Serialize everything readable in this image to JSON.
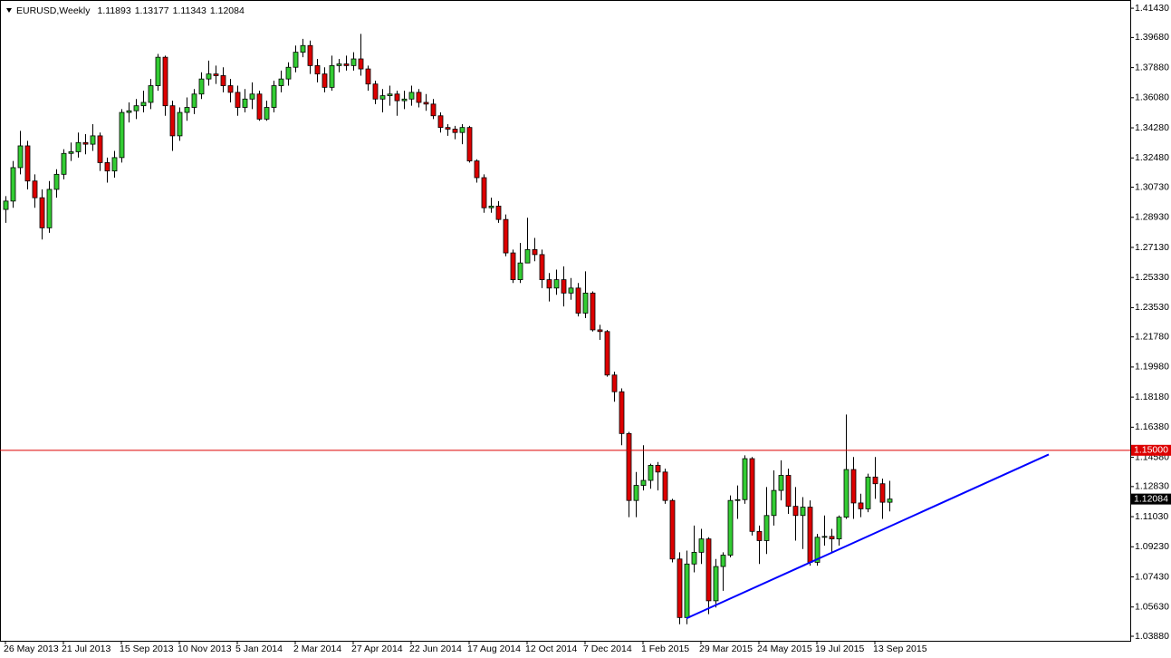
{
  "chart_data": {
    "type": "candlestick",
    "title": "EURUSD,Weekly",
    "categories": [
      "26 May 2013",
      null,
      null,
      null,
      null,
      null,
      null,
      null,
      "21 Jul 2013",
      null,
      null,
      null,
      null,
      null,
      null,
      null,
      "15 Sep 2013",
      null,
      null,
      null,
      null,
      null,
      null,
      null,
      "10 Nov 2013",
      null,
      null,
      null,
      null,
      null,
      null,
      null,
      "5 Jan 2014",
      null,
      null,
      null,
      null,
      null,
      null,
      null,
      "2 Mar 2014",
      null,
      null,
      null,
      null,
      null,
      null,
      null,
      "27 Apr 2014",
      null,
      null,
      null,
      null,
      null,
      null,
      null,
      "22 Jun 2014",
      null,
      null,
      null,
      null,
      null,
      null,
      null,
      "17 Aug 2014",
      null,
      null,
      null,
      null,
      null,
      null,
      null,
      "12 Oct 2014",
      null,
      null,
      null,
      null,
      null,
      null,
      null,
      "7 Dec 2014",
      null,
      null,
      null,
      null,
      null,
      null,
      null,
      "1 Feb 2015",
      null,
      null,
      null,
      null,
      null,
      null,
      null,
      "29 Mar 2015",
      null,
      null,
      null,
      null,
      null,
      null,
      null,
      "24 May 2015",
      null,
      null,
      null,
      null,
      null,
      null,
      null,
      "19 Jul 2015",
      null,
      null,
      null,
      null,
      null,
      null,
      null,
      "13 Sep 2015",
      null,
      null
    ],
    "open": [
      1.294,
      1.299,
      1.319,
      1.332,
      1.311,
      1.301,
      1.283,
      1.306,
      1.315,
      1.3275,
      1.3285,
      1.334,
      1.333,
      1.338,
      1.322,
      1.317,
      1.325,
      1.352,
      1.353,
      1.356,
      1.358,
      1.368,
      1.385,
      1.356,
      1.338,
      1.352,
      1.355,
      1.363,
      1.372,
      1.375,
      1.374,
      1.368,
      1.364,
      1.355,
      1.36,
      1.363,
      1.348,
      1.355,
      1.368,
      1.372,
      1.379,
      1.388,
      1.392,
      1.38,
      1.375,
      1.367,
      1.38,
      1.381,
      1.38,
      1.384,
      1.378,
      1.369,
      1.36,
      1.362,
      1.363,
      1.359,
      1.36,
      1.364,
      1.358,
      1.357,
      1.35,
      1.343,
      1.342,
      1.34,
      1.343,
      1.323,
      1.313,
      1.295,
      1.296,
      1.288,
      1.268,
      1.252,
      1.262,
      1.27,
      1.267,
      1.252,
      1.247,
      1.252,
      1.244,
      1.247,
      1.232,
      1.244,
      1.222,
      1.221,
      1.195,
      1.185,
      1.16,
      1.12,
      1.129,
      1.132,
      1.141,
      1.137,
      1.12,
      1.085,
      1.05,
      1.082,
      1.089,
      1.097,
      1.06,
      1.0805,
      1.0873,
      1.12,
      1.1205,
      1.145,
      1.1015,
      1.096,
      1.111,
      1.126,
      1.135,
      1.1165,
      1.111,
      1.116,
      1.083,
      1.098,
      1.0985,
      1.097,
      1.11,
      1.1385,
      1.1185,
      1.115,
      1.134,
      1.13,
      1.11893
    ],
    "high": [
      1.302,
      1.323,
      1.341,
      1.335,
      1.315,
      1.306,
      1.311,
      1.318,
      1.33,
      1.334,
      1.34,
      1.339,
      1.345,
      1.34,
      1.325,
      1.329,
      1.354,
      1.358,
      1.36,
      1.365,
      1.372,
      1.387,
      1.386,
      1.359,
      1.355,
      1.361,
      1.366,
      1.376,
      1.383,
      1.38,
      1.379,
      1.372,
      1.368,
      1.366,
      1.37,
      1.365,
      1.359,
      1.371,
      1.377,
      1.382,
      1.392,
      1.396,
      1.395,
      1.384,
      1.379,
      1.386,
      1.384,
      1.386,
      1.388,
      1.399,
      1.38,
      1.371,
      1.366,
      1.368,
      1.365,
      1.365,
      1.368,
      1.366,
      1.363,
      1.36,
      1.352,
      1.345,
      1.344,
      1.345,
      1.344,
      1.324,
      1.315,
      1.301,
      1.299,
      1.291,
      1.27,
      1.274,
      1.289,
      1.277,
      1.27,
      1.256,
      1.258,
      1.26,
      1.253,
      1.25,
      1.257,
      1.245,
      1.225,
      1.222,
      1.197,
      1.187,
      1.161,
      1.137,
      1.153,
      1.142,
      1.143,
      1.139,
      1.121,
      1.089,
      1.09,
      1.105,
      1.103,
      1.098,
      1.085,
      1.089,
      1.123,
      1.129,
      1.147,
      1.146,
      1.105,
      1.128,
      1.138,
      1.144,
      1.139,
      1.128,
      1.122,
      1.12,
      1.1,
      1.111,
      1.103,
      1.111,
      1.1714,
      1.146,
      1.124,
      1.136,
      1.146,
      1.133,
      1.13177
    ],
    "low": [
      1.286,
      1.295,
      1.315,
      1.306,
      1.295,
      1.276,
      1.28,
      1.301,
      1.312,
      1.323,
      1.325,
      1.327,
      1.329,
      1.317,
      1.31,
      1.313,
      1.322,
      1.346,
      1.348,
      1.352,
      1.354,
      1.365,
      1.35,
      1.329,
      1.335,
      1.347,
      1.351,
      1.36,
      1.368,
      1.369,
      1.364,
      1.358,
      1.35,
      1.352,
      1.354,
      1.347,
      1.347,
      1.352,
      1.364,
      1.368,
      1.376,
      1.385,
      1.375,
      1.37,
      1.364,
      1.365,
      1.376,
      1.377,
      1.377,
      1.374,
      1.365,
      1.357,
      1.352,
      1.356,
      1.35,
      1.354,
      1.356,
      1.355,
      1.353,
      1.348,
      1.34,
      1.338,
      1.336,
      1.333,
      1.322,
      1.31,
      1.292,
      1.292,
      1.286,
      1.266,
      1.25,
      1.25,
      1.262,
      1.263,
      1.247,
      1.239,
      1.243,
      1.236,
      1.24,
      1.23,
      1.229,
      1.221,
      1.216,
      1.194,
      1.179,
      1.153,
      1.11,
      1.11,
      1.126,
      1.127,
      1.126,
      1.118,
      1.083,
      1.046,
      1.046,
      1.077,
      1.082,
      1.052,
      1.056,
      1.066,
      1.086,
      1.109,
      1.118,
      1.099,
      1.082,
      1.088,
      1.105,
      1.12,
      1.112,
      1.096,
      1.091,
      1.081,
      1.081,
      1.093,
      1.089,
      1.093,
      1.109,
      1.109,
      1.11,
      1.113,
      1.121,
      1.109,
      1.11343
    ],
    "close": [
      1.299,
      1.319,
      1.332,
      1.311,
      1.301,
      1.283,
      1.306,
      1.315,
      1.3275,
      1.3285,
      1.334,
      1.333,
      1.338,
      1.322,
      1.317,
      1.325,
      1.352,
      1.353,
      1.356,
      1.358,
      1.368,
      1.385,
      1.356,
      1.338,
      1.352,
      1.355,
      1.363,
      1.372,
      1.375,
      1.374,
      1.368,
      1.364,
      1.355,
      1.36,
      1.363,
      1.348,
      1.355,
      1.368,
      1.372,
      1.379,
      1.388,
      1.392,
      1.38,
      1.375,
      1.367,
      1.38,
      1.381,
      1.38,
      1.384,
      1.378,
      1.369,
      1.36,
      1.362,
      1.363,
      1.359,
      1.36,
      1.364,
      1.358,
      1.357,
      1.35,
      1.343,
      1.342,
      1.34,
      1.343,
      1.323,
      1.313,
      1.295,
      1.296,
      1.288,
      1.268,
      1.252,
      1.262,
      1.27,
      1.267,
      1.252,
      1.247,
      1.252,
      1.244,
      1.247,
      1.232,
      1.244,
      1.222,
      1.221,
      1.195,
      1.185,
      1.16,
      1.12,
      1.129,
      1.132,
      1.141,
      1.137,
      1.12,
      1.085,
      1.05,
      1.082,
      1.089,
      1.097,
      1.06,
      1.0805,
      1.0873,
      1.12,
      1.1205,
      1.145,
      1.1015,
      1.096,
      1.111,
      1.126,
      1.135,
      1.1165,
      1.111,
      1.116,
      1.083,
      1.098,
      1.0985,
      1.097,
      1.11,
      1.1385,
      1.1185,
      1.115,
      1.134,
      1.13,
      1.11893,
      1.12084
    ],
    "up_color": "#33cc33",
    "down_color": "#dd0000",
    "ylim": [
      1.0361,
      1.4176
    ],
    "yticks": [
      {
        "value": 1.4143,
        "label": "1.41430"
      },
      {
        "value": 1.3968,
        "label": "1.39680"
      },
      {
        "value": 1.3788,
        "label": "1.37880"
      },
      {
        "value": 1.3608,
        "label": "1.36080"
      },
      {
        "value": 1.3428,
        "label": "1.34280"
      },
      {
        "value": 1.3248,
        "label": "1.32480"
      },
      {
        "value": 1.3073,
        "label": "1.30730"
      },
      {
        "value": 1.2893,
        "label": "1.28930"
      },
      {
        "value": 1.2713,
        "label": "1.27130"
      },
      {
        "value": 1.2533,
        "label": "1.25330"
      },
      {
        "value": 1.2353,
        "label": "1.23530"
      },
      {
        "value": 1.2178,
        "label": "1.21780"
      },
      {
        "value": 1.1998,
        "label": "1.19980"
      },
      {
        "value": 1.1818,
        "label": "1.18180"
      },
      {
        "value": 1.1638,
        "label": "1.16380"
      },
      {
        "value": 1.1458,
        "label": "1.14580"
      },
      {
        "value": 1.1283,
        "label": "1.12830"
      },
      {
        "value": 1.1103,
        "label": "1.11030"
      },
      {
        "value": 1.0923,
        "label": "1.09230"
      },
      {
        "value": 1.0743,
        "label": "1.07430"
      },
      {
        "value": 1.0563,
        "label": "1.05630"
      },
      {
        "value": 1.0388,
        "label": "1.03880"
      }
    ],
    "hline": {
      "value": 1.15,
      "label": "1.15000",
      "color": "#dd0000"
    },
    "trendline": {
      "from": {
        "index": 94,
        "price": 1.0495
      },
      "to": {
        "index": 144,
        "price": 1.1475
      },
      "color": "#0000ff"
    }
  }
}
